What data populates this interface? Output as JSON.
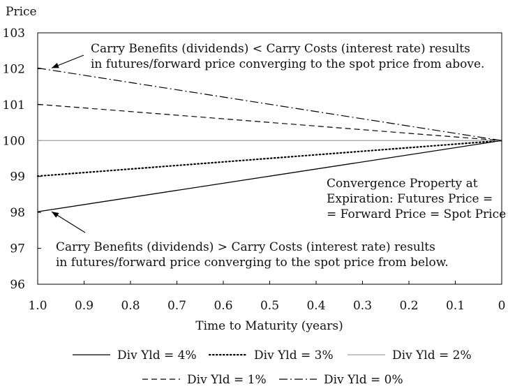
{
  "chart_data": {
    "type": "line",
    "ylabel": "Price",
    "xlabel": "Time to Maturity (years)",
    "xlim": [
      1.0,
      0
    ],
    "ylim": [
      96,
      103
    ],
    "x_ticks": [
      "1.0",
      "0.9",
      "0.8",
      "0.7",
      "0.6",
      "0.5",
      "0.4",
      "0.3",
      "0.2",
      "0.1",
      "0"
    ],
    "y_ticks": [
      "96",
      "97",
      "98",
      "99",
      "100",
      "101",
      "102",
      "103"
    ],
    "grid": false,
    "legend_position": "bottom",
    "series": [
      {
        "name": "Div Yld = 4%",
        "style": "solid",
        "color": "#000000",
        "x": [
          1.0,
          0
        ],
        "y": [
          98.02,
          100
        ]
      },
      {
        "name": "Div Yld = 3%",
        "style": "dotted",
        "color": "#000000",
        "x": [
          1.0,
          0
        ],
        "y": [
          99.01,
          100
        ]
      },
      {
        "name": "Div Yld = 2%",
        "style": "solid-light",
        "color": "#a0a0a0",
        "x": [
          1.0,
          0
        ],
        "y": [
          100,
          100
        ]
      },
      {
        "name": "Div Yld = 1%",
        "style": "dashed",
        "color": "#000000",
        "x": [
          1.0,
          0
        ],
        "y": [
          101.01,
          100
        ]
      },
      {
        "name": "Div Yld = 0%",
        "style": "dash-dot",
        "color": "#000000",
        "x": [
          1.0,
          0
        ],
        "y": [
          102.02,
          100
        ]
      }
    ],
    "annotations": {
      "above": {
        "line1": "Carry Benefits (dividends) < Carry Costs (interest rate) results",
        "line2": "in futures/forward price converging to the spot price from above.",
        "arrow_to": [
          1.0,
          102.02
        ]
      },
      "below": {
        "line1": "Carry Benefits (dividends) > Carry Costs (interest rate) results",
        "line2": "in futures/forward price converging to the spot price from below.",
        "arrow_to": [
          1.0,
          98.02
        ]
      },
      "convergence": {
        "line1": "Convergence Property at",
        "line2": "Expiration: Futures Price =",
        "line3": "= Forward Price = Spot Price"
      }
    }
  }
}
